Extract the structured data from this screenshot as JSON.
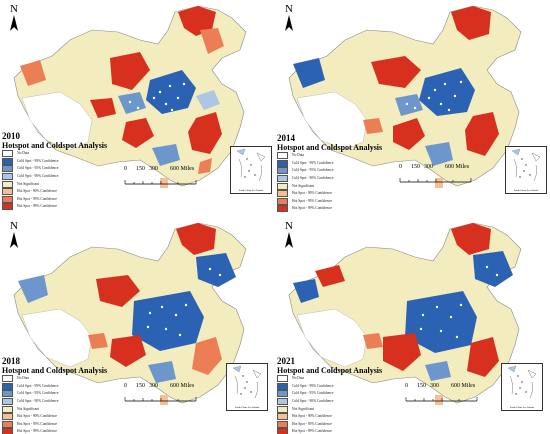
{
  "common": {
    "north_label": "N",
    "legend_title": "Hotspot and Coldspot Analysis",
    "legend_items": [
      {
        "label": "No Data",
        "color": "#ffffff"
      },
      {
        "label": "Cold Spot - 99% Confidence",
        "color": "#2c62b4"
      },
      {
        "label": "Cold Spot - 95% Confidence",
        "color": "#6d97cc"
      },
      {
        "label": "Cold Spot - 90% Confidence",
        "color": "#adc6e3"
      },
      {
        "label": "Not Significant",
        "color": "#f3ecbe"
      },
      {
        "label": "Hot Spot - 90% Confidence",
        "color": "#f6bf94"
      },
      {
        "label": "Hot Spot - 95% Confidence",
        "color": "#ec7e56"
      },
      {
        "label": "Hot Spot - 99% Confidence",
        "color": "#d8301f"
      }
    ],
    "scale_labels": [
      "0",
      "150",
      "300",
      "600 Miles"
    ],
    "inset_caption": "South China Sea Islands"
  },
  "panels": [
    {
      "year": "2010"
    },
    {
      "year": "2014"
    },
    {
      "year": "2018"
    },
    {
      "year": "2021"
    }
  ]
}
